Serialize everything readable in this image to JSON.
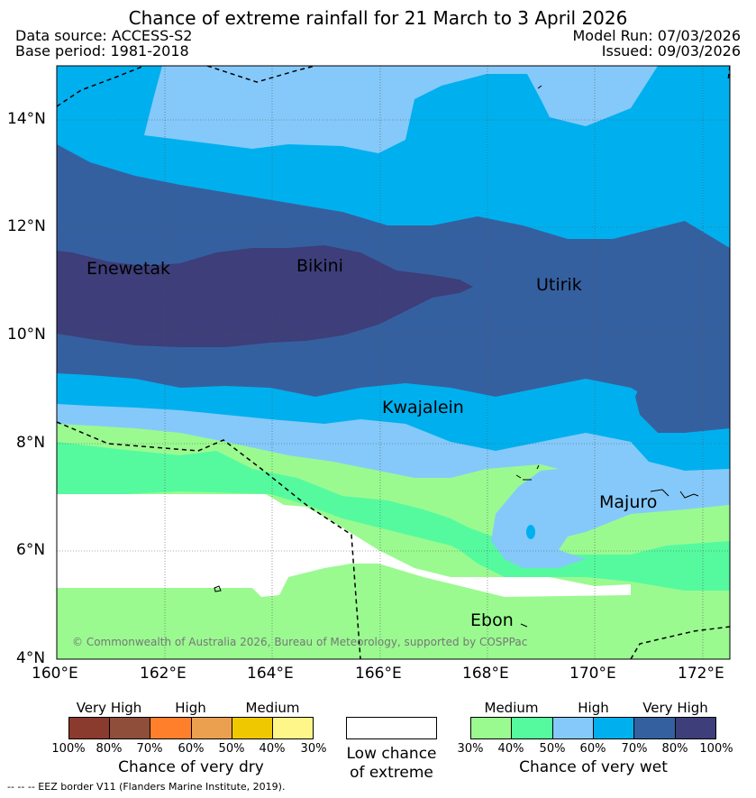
{
  "header": {
    "title": "Chance of extreme rainfall for 21 March to 3 April 2026",
    "data_source": "Data source: ACCESS-S2",
    "base_period": "Base period: 1981-2018",
    "model_run": "Model Run: 07/03/2026",
    "issued": "Issued: 09/03/2026"
  },
  "map": {
    "lat_labels": [
      "14°N",
      "12°N",
      "10°N",
      "8°N",
      "6°N",
      "4°N"
    ],
    "lon_labels": [
      "160°E",
      "162°E",
      "164°E",
      "166°E",
      "168°E",
      "170°E",
      "172°E"
    ],
    "places": [
      "Enewetak",
      "Bikini",
      "Utirik",
      "Kwajalein",
      "Majuro",
      "Ebon"
    ],
    "copyright": "© Commonwealth of Australia 2026, Bureau of Meteorology, supported by COSPPac"
  },
  "legend": {
    "dry": {
      "categories": [
        "Very High",
        "High",
        "Medium"
      ],
      "ticks": [
        "100%",
        "80%",
        "70%",
        "60%",
        "50%",
        "40%",
        "30%"
      ],
      "colors": [
        "#8b3a2e",
        "#8f4e3a",
        "#ff7f2a",
        "#eba050",
        "#f0c800",
        "#fff68a"
      ],
      "title": "Chance of very dry"
    },
    "low": {
      "title_line1": "Low chance",
      "title_line2": "of extreme"
    },
    "wet": {
      "categories": [
        "Medium",
        "High",
        "Very High"
      ],
      "ticks": [
        "30%",
        "40%",
        "50%",
        "60%",
        "70%",
        "80%",
        "100%"
      ],
      "colors": [
        "#9afa90",
        "#55fa9f",
        "#85c9fa",
        "#00b0ee",
        "#3560a0",
        "#3d3e7a"
      ],
      "title": "Chance of very wet"
    },
    "footnote": "--  --  -- EEZ border V11 (Flanders Marine Institute, 2019)."
  }
}
